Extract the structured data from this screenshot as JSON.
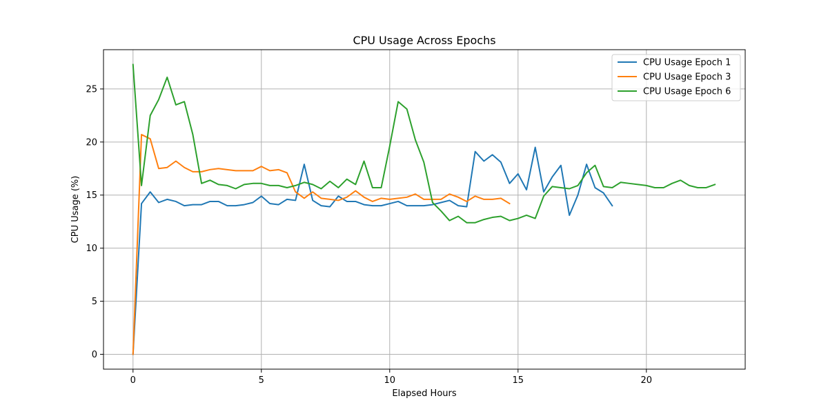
{
  "chart_data": {
    "type": "line",
    "title": "CPU Usage Across Epochs",
    "xlabel": "Elapsed Hours",
    "ylabel": "CPU Usage (%)",
    "xlim": [
      -1.15,
      23.85
    ],
    "ylim": [
      -1.4,
      28.7
    ],
    "xticks": [
      0,
      5,
      10,
      15,
      20
    ],
    "yticks": [
      0,
      5,
      10,
      15,
      20,
      25
    ],
    "grid": true,
    "legend_position": "top-right",
    "series": [
      {
        "name": "CPU Usage Epoch 1",
        "color": "#1f77b4",
        "x": [
          0,
          0.33,
          0.67,
          1.0,
          1.33,
          1.67,
          2.0,
          2.33,
          2.67,
          3.0,
          3.33,
          3.67,
          4.0,
          4.33,
          4.67,
          5.0,
          5.33,
          5.67,
          6.0,
          6.33,
          6.67,
          7.0,
          7.33,
          7.67,
          8.0,
          8.33,
          8.67,
          9.0,
          9.33,
          9.67,
          10.0,
          10.33,
          10.67,
          11.0,
          11.33,
          11.67,
          12.0,
          12.33,
          12.67,
          13.0,
          13.33,
          13.67,
          14.0,
          14.33,
          14.67,
          15.0,
          15.33,
          15.67,
          16.0,
          16.33,
          16.67,
          17.0,
          17.33,
          17.67,
          18.0,
          18.33,
          18.67
        ],
        "y": [
          0,
          14.2,
          15.3,
          14.3,
          14.6,
          14.4,
          14.0,
          14.1,
          14.1,
          14.4,
          14.4,
          14.0,
          14.0,
          14.1,
          14.3,
          14.9,
          14.2,
          14.1,
          14.6,
          14.5,
          17.9,
          14.5,
          14.0,
          13.9,
          14.9,
          14.4,
          14.4,
          14.1,
          14.0,
          14.0,
          14.2,
          14.4,
          14.0,
          14.0,
          14.0,
          14.1,
          14.3,
          14.5,
          14.0,
          13.9,
          19.1,
          18.2,
          18.8,
          18.1,
          16.1,
          17.0,
          15.5,
          19.5,
          15.3,
          16.7,
          17.8,
          13.1,
          15.0,
          17.9,
          15.7,
          15.2,
          14.0
        ]
      },
      {
        "name": "CPU Usage Epoch 3",
        "color": "#ff7f0e",
        "x": [
          0,
          0.33,
          0.67,
          1.0,
          1.33,
          1.67,
          2.0,
          2.33,
          2.67,
          3.0,
          3.33,
          3.67,
          4.0,
          4.33,
          4.67,
          5.0,
          5.33,
          5.67,
          6.0,
          6.33,
          6.67,
          7.0,
          7.33,
          7.67,
          8.0,
          8.33,
          8.67,
          9.0,
          9.33,
          9.67,
          10.0,
          10.33,
          10.67,
          11.0,
          11.33,
          11.67,
          12.0,
          12.33,
          12.67,
          13.0,
          13.33,
          13.67,
          14.0,
          14.33,
          14.67
        ],
        "y": [
          0,
          20.7,
          20.3,
          17.5,
          17.6,
          18.2,
          17.6,
          17.2,
          17.2,
          17.4,
          17.5,
          17.4,
          17.3,
          17.3,
          17.3,
          17.7,
          17.3,
          17.4,
          17.1,
          15.3,
          14.7,
          15.3,
          14.7,
          14.6,
          14.5,
          14.8,
          15.4,
          14.8,
          14.4,
          14.7,
          14.6,
          14.7,
          14.8,
          15.1,
          14.6,
          14.6,
          14.6,
          15.1,
          14.8,
          14.4,
          14.9,
          14.6,
          14.6,
          14.7,
          14.2
        ]
      },
      {
        "name": "CPU Usage Epoch 6",
        "color": "#2ca02c",
        "x": [
          0,
          0.33,
          0.67,
          1.0,
          1.33,
          1.67,
          2.0,
          2.33,
          2.67,
          3.0,
          3.33,
          3.67,
          4.0,
          4.33,
          4.67,
          5.0,
          5.33,
          5.67,
          6.0,
          6.33,
          6.67,
          7.0,
          7.33,
          7.67,
          8.0,
          8.33,
          8.67,
          9.0,
          9.33,
          9.67,
          10.0,
          10.33,
          10.67,
          11.0,
          11.33,
          11.67,
          12.0,
          12.33,
          12.67,
          13.0,
          13.33,
          13.67,
          14.0,
          14.33,
          14.67,
          15.0,
          15.33,
          15.67,
          16.0,
          16.33,
          16.67,
          17.0,
          17.33,
          17.67,
          18.0,
          18.33,
          18.67,
          19.0,
          19.33,
          19.67,
          20.0,
          20.33,
          20.67,
          21.0,
          21.33,
          21.67,
          22.0,
          22.33,
          22.67
        ],
        "y": [
          27.3,
          15.9,
          22.5,
          24.0,
          26.1,
          23.5,
          23.8,
          20.7,
          16.1,
          16.4,
          16.0,
          15.9,
          15.6,
          16.0,
          16.1,
          16.1,
          15.9,
          15.9,
          15.7,
          15.9,
          16.2,
          16.0,
          15.6,
          16.3,
          15.7,
          16.5,
          16.0,
          18.2,
          15.7,
          15.7,
          19.6,
          23.8,
          23.1,
          20.2,
          18.1,
          14.3,
          13.5,
          12.6,
          13.0,
          12.4,
          12.4,
          12.7,
          12.9,
          13.0,
          12.6,
          12.8,
          13.1,
          12.8,
          14.9,
          15.8,
          15.7,
          15.6,
          15.9,
          17.1,
          17.8,
          15.8,
          15.7,
          16.2,
          16.1,
          16.0,
          15.9,
          15.7,
          15.7,
          16.1,
          16.4,
          15.9,
          15.7,
          15.7,
          16.0
        ]
      }
    ]
  }
}
